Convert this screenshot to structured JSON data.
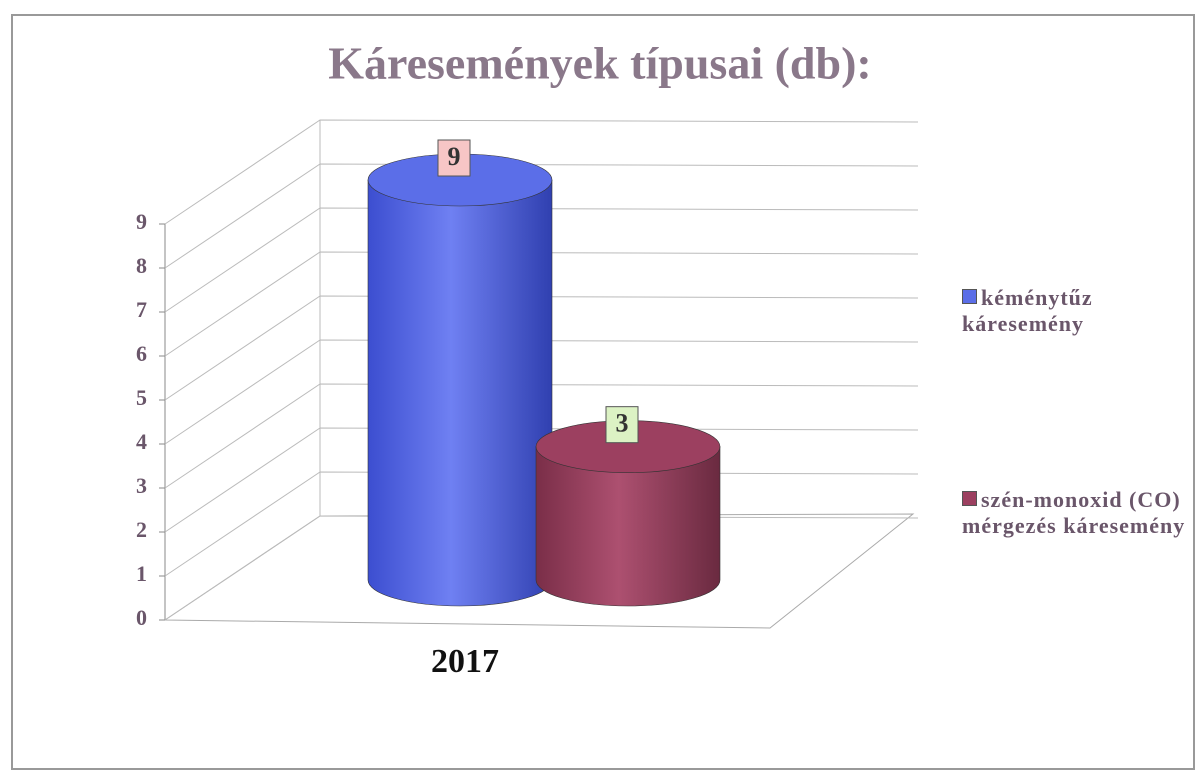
{
  "chart_data": {
    "type": "bar3d",
    "title": "Káresemények típusai (db):",
    "categories": [
      "2017"
    ],
    "series": [
      {
        "name": "kéménytűz káresemény",
        "color": "#5b6ee8",
        "values": [
          9
        ]
      },
      {
        "name": "szén-monoxid (CO) mérgezés káresemény",
        "color": "#9c4060",
        "values": [
          3
        ]
      }
    ],
    "ylim": [
      0,
      9
    ],
    "yticks": [
      0,
      1,
      2,
      3,
      4,
      5,
      6,
      7,
      8,
      9
    ],
    "grid": true
  }
}
